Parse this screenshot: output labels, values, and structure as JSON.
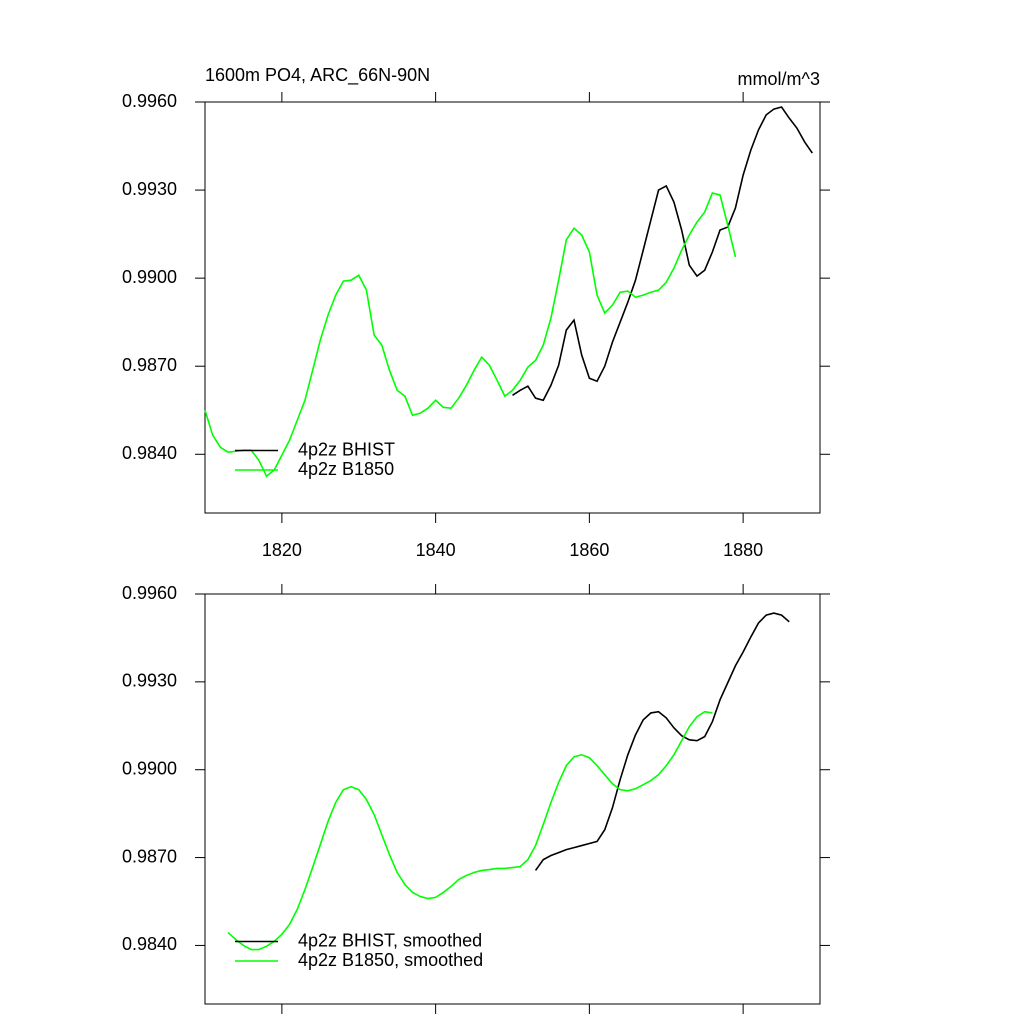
{
  "chart_data": [
    {
      "type": "line",
      "title": "1600m PO4, ARC_66N-90N",
      "units": "mmol/m^3",
      "xlim": [
        1810,
        1890
      ],
      "xticks": [
        1820,
        1840,
        1860,
        1880
      ],
      "xtick_labels": true,
      "ylim": [
        0.982,
        0.996
      ],
      "yticks": [
        {
          "value": 0.984,
          "label": "0.9840"
        },
        {
          "value": 0.987,
          "label": "0.9870"
        },
        {
          "value": 0.99,
          "label": "0.9900"
        },
        {
          "value": 0.993,
          "label": "0.9930"
        },
        {
          "value": 0.996,
          "label": "0.9960"
        }
      ],
      "legend": "lower left",
      "series": [
        {
          "name": "4p2z BHIST",
          "color": "#000000",
          "x": [
            1850,
            1851,
            1852,
            1853,
            1854,
            1855,
            1856,
            1857,
            1858,
            1859,
            1860,
            1861,
            1862,
            1863,
            1864,
            1865,
            1866,
            1867,
            1868,
            1869,
            1870,
            1871,
            1872,
            1873,
            1874,
            1875,
            1876,
            1877,
            1878,
            1879,
            1880,
            1881,
            1882,
            1883,
            1884,
            1885,
            1886,
            1887,
            1888,
            1889
          ],
          "values": [
            0.98601,
            0.98618,
            0.98632,
            0.98591,
            0.98584,
            0.98635,
            0.98703,
            0.98823,
            0.98857,
            0.98738,
            0.98659,
            0.98649,
            0.987,
            0.98782,
            0.9885,
            0.98918,
            0.98993,
            0.99095,
            0.99198,
            0.993,
            0.99314,
            0.99259,
            0.99164,
            0.99044,
            0.99007,
            0.99027,
            0.99089,
            0.99164,
            0.99174,
            0.99239,
            0.99351,
            0.99436,
            0.99505,
            0.99556,
            0.99576,
            0.99583,
            0.99545,
            0.99511,
            0.99464,
            0.99426
          ]
        },
        {
          "name": "4p2z B1850",
          "color": "#00ff00",
          "x": [
            1810,
            1811,
            1812,
            1813,
            1814,
            1815,
            1816,
            1817,
            1818,
            1819,
            1820,
            1821,
            1822,
            1823,
            1824,
            1825,
            1826,
            1827,
            1828,
            1829,
            1830,
            1831,
            1832,
            1833,
            1834,
            1835,
            1836,
            1837,
            1838,
            1839,
            1840,
            1841,
            1842,
            1843,
            1844,
            1845,
            1846,
            1847,
            1848,
            1849,
            1850,
            1851,
            1852,
            1853,
            1854,
            1855,
            1856,
            1857,
            1858,
            1859,
            1860,
            1861,
            1862,
            1863,
            1864,
            1865,
            1866,
            1867,
            1868,
            1869,
            1870,
            1871,
            1872,
            1873,
            1874,
            1875,
            1876,
            1877,
            1878,
            1879
          ],
          "values": [
            0.9855,
            0.98465,
            0.98424,
            0.98407,
            0.9841,
            0.98414,
            0.98414,
            0.9838,
            0.98325,
            0.98346,
            0.98397,
            0.98448,
            0.98516,
            0.98584,
            0.98686,
            0.98789,
            0.98874,
            0.98942,
            0.9899,
            0.98993,
            0.9901,
            0.98959,
            0.98806,
            0.98772,
            0.98686,
            0.98618,
            0.98598,
            0.98533,
            0.9854,
            0.98557,
            0.98584,
            0.9856,
            0.98557,
            0.98591,
            0.98635,
            0.98686,
            0.98731,
            0.98703,
            0.98652,
            0.98598,
            0.98618,
            0.98652,
            0.98697,
            0.9872,
            0.98772,
            0.98864,
            0.98993,
            0.9913,
            0.9917,
            0.99147,
            0.99089,
            0.98942,
            0.98881,
            0.98908,
            0.98952,
            0.98956,
            0.98935,
            0.98942,
            0.98952,
            0.98959,
            0.98986,
            0.99034,
            0.99095,
            0.99147,
            0.99191,
            0.99225,
            0.9929,
            0.99283,
            0.99181,
            0.99072
          ]
        }
      ]
    },
    {
      "type": "line",
      "xlim": [
        1810,
        1890
      ],
      "xticks": [
        1820,
        1840,
        1860,
        1880
      ],
      "xtick_labels": false,
      "ylim": [
        0.982,
        0.996
      ],
      "yticks": [
        {
          "value": 0.984,
          "label": "0.9840"
        },
        {
          "value": 0.987,
          "label": "0.9870"
        },
        {
          "value": 0.99,
          "label": "0.9900"
        },
        {
          "value": 0.993,
          "label": "0.9930"
        },
        {
          "value": 0.996,
          "label": "0.9960"
        }
      ],
      "legend": "lower left",
      "series": [
        {
          "name": "4p2z BHIST, smoothed",
          "color": "#000000",
          "x": [
            1853,
            1854,
            1855,
            1856,
            1857,
            1858,
            1859,
            1860,
            1861,
            1862,
            1863,
            1864,
            1865,
            1866,
            1867,
            1868,
            1869,
            1870,
            1871,
            1872,
            1873,
            1874,
            1875,
            1876,
            1877,
            1878,
            1879,
            1880,
            1881,
            1882,
            1883,
            1884,
            1885,
            1886
          ],
          "values": [
            0.98656,
            0.98693,
            0.98707,
            0.98717,
            0.98727,
            0.98734,
            0.98741,
            0.98748,
            0.98755,
            0.98795,
            0.9887,
            0.98966,
            0.99051,
            0.99119,
            0.9917,
            0.99194,
            0.99198,
            0.99177,
            0.99143,
            0.99116,
            0.99102,
            0.99099,
            0.99113,
            0.99164,
            0.99239,
            0.99297,
            0.99355,
            0.99402,
            0.99453,
            0.99501,
            0.99528,
            0.99535,
            0.99528,
            0.99505
          ]
        },
        {
          "name": "4p2z B1850, smoothed",
          "color": "#00ff00",
          "x": [
            1813,
            1814,
            1815,
            1816,
            1817,
            1818,
            1819,
            1820,
            1821,
            1822,
            1823,
            1824,
            1825,
            1826,
            1827,
            1828,
            1829,
            1830,
            1831,
            1832,
            1833,
            1834,
            1835,
            1836,
            1837,
            1838,
            1839,
            1840,
            1841,
            1842,
            1843,
            1844,
            1845,
            1846,
            1847,
            1848,
            1849,
            1850,
            1851,
            1852,
            1853,
            1854,
            1855,
            1856,
            1857,
            1858,
            1859,
            1860,
            1861,
            1862,
            1863,
            1864,
            1865,
            1866,
            1867,
            1868,
            1869,
            1870,
            1871,
            1872,
            1873,
            1874,
            1875,
            1876
          ],
          "values": [
            0.98444,
            0.9842,
            0.984,
            0.98386,
            0.98386,
            0.98397,
            0.98414,
            0.98438,
            0.98472,
            0.98523,
            0.98591,
            0.98666,
            0.98744,
            0.98823,
            0.98888,
            0.98932,
            0.98942,
            0.98932,
            0.98898,
            0.98847,
            0.98778,
            0.9871,
            0.98649,
            0.98608,
            0.98581,
            0.98567,
            0.9856,
            0.98564,
            0.98581,
            0.98601,
            0.98625,
            0.98639,
            0.98649,
            0.98656,
            0.98659,
            0.98663,
            0.98663,
            0.98666,
            0.98669,
            0.98693,
            0.98741,
            0.98813,
            0.98888,
            0.98956,
            0.99014,
            0.99044,
            0.99051,
            0.99041,
            0.99014,
            0.98983,
            0.98952,
            0.98932,
            0.98928,
            0.98935,
            0.98949,
            0.98963,
            0.98983,
            0.99014,
            0.99051,
            0.99099,
            0.99147,
            0.99181,
            0.99198,
            0.99194
          ]
        }
      ]
    }
  ]
}
